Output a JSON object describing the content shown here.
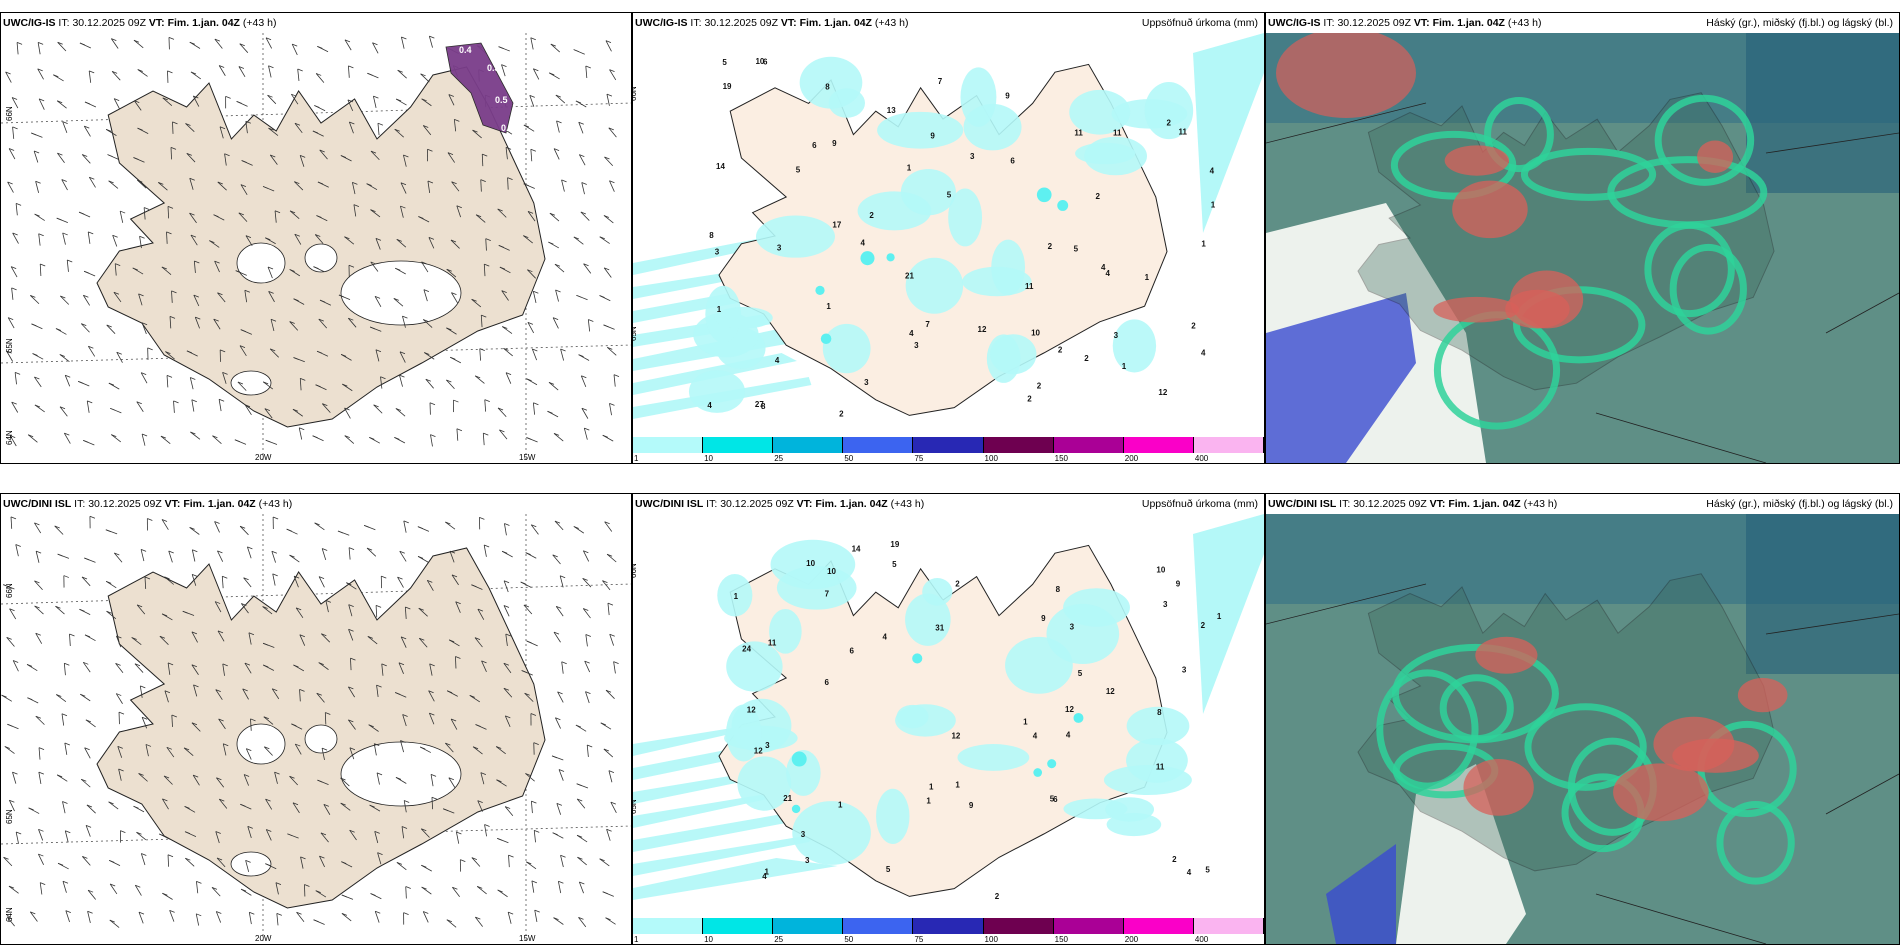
{
  "rows": [
    {
      "model": "UWC/IG-IS",
      "it_label": "IT:",
      "it_value": "30.12.2025 09Z",
      "vt_label": "VT:",
      "vt_value": "Fim. 1.jan. 04Z",
      "lead": "(+43 h)",
      "precip_title": "Uppsöfnuð úrkoma (mm)",
      "cloud_title": "Háský (gr.), miðský (fj.bl.) og lágský (bl.)",
      "lat_labels": [
        "66N",
        "65N",
        "64N"
      ],
      "lon_labels": [
        "20W",
        "15W"
      ],
      "precip_numbers": [
        "3",
        "2",
        "5",
        "6",
        "7",
        "11",
        "6",
        "8",
        "4",
        "3",
        "4",
        "2",
        "5",
        "7",
        "14",
        "9",
        "4",
        "4",
        "2",
        "3",
        "11",
        "12",
        "1",
        "5",
        "9",
        "13",
        "27",
        "21",
        "12",
        "8",
        "10",
        "17",
        "9",
        "2",
        "1",
        "3",
        "2",
        "2",
        "1",
        "4",
        "3",
        "8",
        "11",
        "2",
        "10",
        "19",
        "11",
        "4",
        "2",
        "5",
        "4",
        "3",
        "6",
        "1",
        "1",
        "2",
        "1",
        "4",
        "2",
        "1"
      ],
      "snow_values": [
        "0.4",
        "0.3",
        "0.5",
        "0.3"
      ]
    },
    {
      "model": "UWC/DINI ISL",
      "it_label": "IT:",
      "it_value": "30.12.2025 09Z",
      "vt_label": "VT:",
      "vt_value": "Fim. 1.jan. 04Z",
      "lead": "(+43 h)",
      "precip_title": "Uppsöfnuð úrkoma (mm)",
      "cloud_title": "Háský (gr.), miðský (fj.bl.) og lágský (bl.)",
      "lat_labels": [
        "66N",
        "65N",
        "64N"
      ],
      "lon_labels": [
        "20W",
        "15W"
      ],
      "precip_numbers": [
        "3",
        "4",
        "6",
        "10",
        "9",
        "11",
        "12",
        "14",
        "6",
        "9",
        "12",
        "10",
        "9",
        "8",
        "24",
        "31",
        "19",
        "11",
        "7",
        "12",
        "5",
        "4",
        "5",
        "3",
        "4",
        "5",
        "3",
        "8",
        "12",
        "3",
        "2",
        "5",
        "6",
        "4",
        "1",
        "2",
        "1",
        "1",
        "1",
        "2",
        "1",
        "3",
        "10",
        "12",
        "21",
        "2",
        "1",
        "5",
        "4",
        "3",
        "1",
        "1"
      ],
      "snow_values": []
    }
  ],
  "precip_legend": {
    "ticks": [
      "1",
      "10",
      "25",
      "50",
      "75",
      "100",
      "150",
      "200",
      "400"
    ],
    "colors": [
      "#b4fafa",
      "#00e6e6",
      "#00b4dc",
      "#3c64f0",
      "#2828b4",
      "#6e0050",
      "#aa0096",
      "#fa00c8",
      "#fab4f0"
    ]
  },
  "colors": {
    "land_tan": "#ece0d0",
    "precip_light": "#b4f8f8",
    "precip_mid": "#5ef0f0",
    "snow_purple": "#7a3d8a",
    "cloud_high": "#5f8f86",
    "cloud_mid": "#2fd29a",
    "cloud_low": "#3a4bd0",
    "cloud_red": "#d8605a"
  }
}
